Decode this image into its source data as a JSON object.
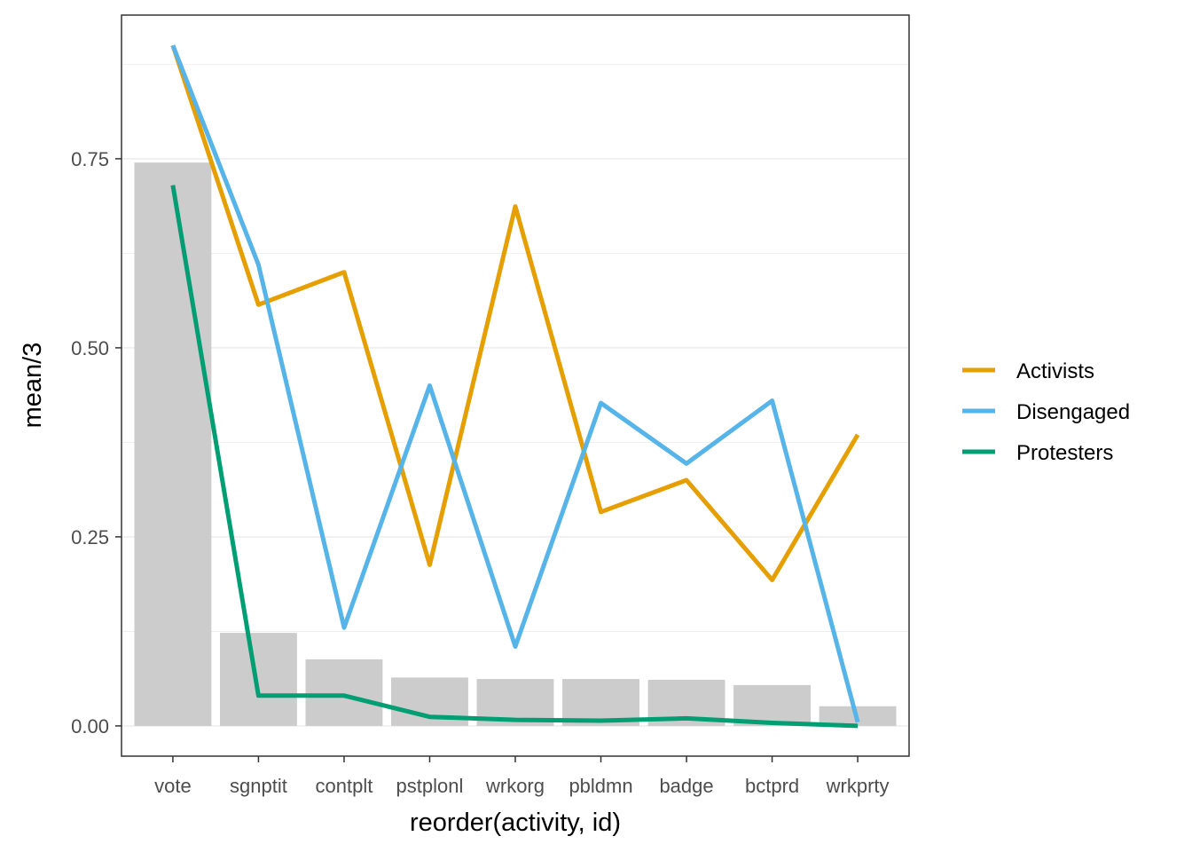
{
  "chart_data": {
    "type": "bar",
    "title": "",
    "xlabel": "reorder(activity, id)",
    "ylabel": "mean/3",
    "categories": [
      "vote",
      "sgnptit",
      "contplt",
      "pstplonl",
      "wrkorg",
      "pbldmn",
      "badge",
      "bctprd",
      "wrkprty"
    ],
    "bars": {
      "color": "#cccccc",
      "values": [
        0.745,
        0.123,
        0.088,
        0.064,
        0.062,
        0.062,
        0.061,
        0.054,
        0.026
      ]
    },
    "series": [
      {
        "name": "Activists",
        "color": "#E69F00",
        "values": [
          0.9,
          0.557,
          0.6,
          0.213,
          0.687,
          0.283,
          0.325,
          0.193,
          0.385
        ]
      },
      {
        "name": "Disengaged",
        "color": "#56B4E9",
        "values": [
          0.9,
          0.61,
          0.13,
          0.45,
          0.105,
          0.427,
          0.347,
          0.43,
          0.005
        ]
      },
      {
        "name": "Protesters",
        "color": "#009E73",
        "values": [
          0.715,
          0.04,
          0.04,
          0.012,
          0.008,
          0.007,
          0.01,
          0.004,
          0.0
        ]
      }
    ],
    "y_ticks": [
      0.0,
      0.25,
      0.5,
      0.75
    ],
    "y_tick_labels": [
      "0.00",
      "0.25",
      "0.50",
      "0.75"
    ],
    "ylim": [
      -0.04,
      0.94
    ],
    "grid": true,
    "legend_position": "right"
  }
}
